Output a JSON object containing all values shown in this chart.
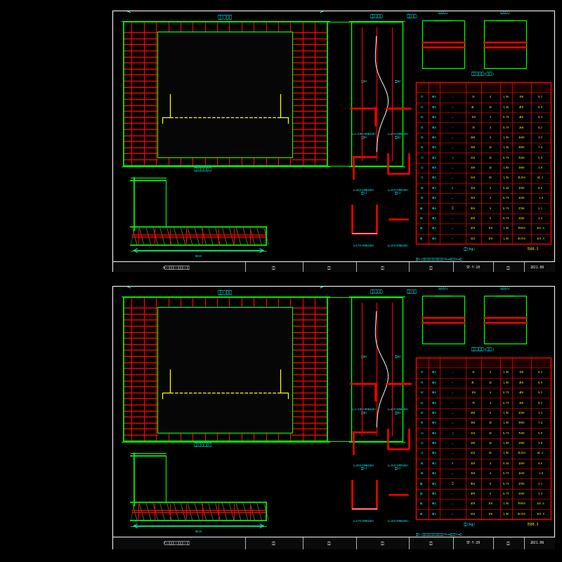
{
  "bg_color": "#000000",
  "cyan": "#00ffff",
  "green": "#00ff00",
  "red": "#ff0000",
  "yellow": "#ffff00",
  "white": "#ffffff",
  "orange": "#ff8800",
  "panel1_label": "0号桥台台身、侧墙钉筋图",
  "panel1_sheet": "ST-Y-10",
  "panel2_label": "7号桥台台身、侧墙钉筋图",
  "panel2_sheet": "ST-Y-20",
  "date": "2021.06"
}
